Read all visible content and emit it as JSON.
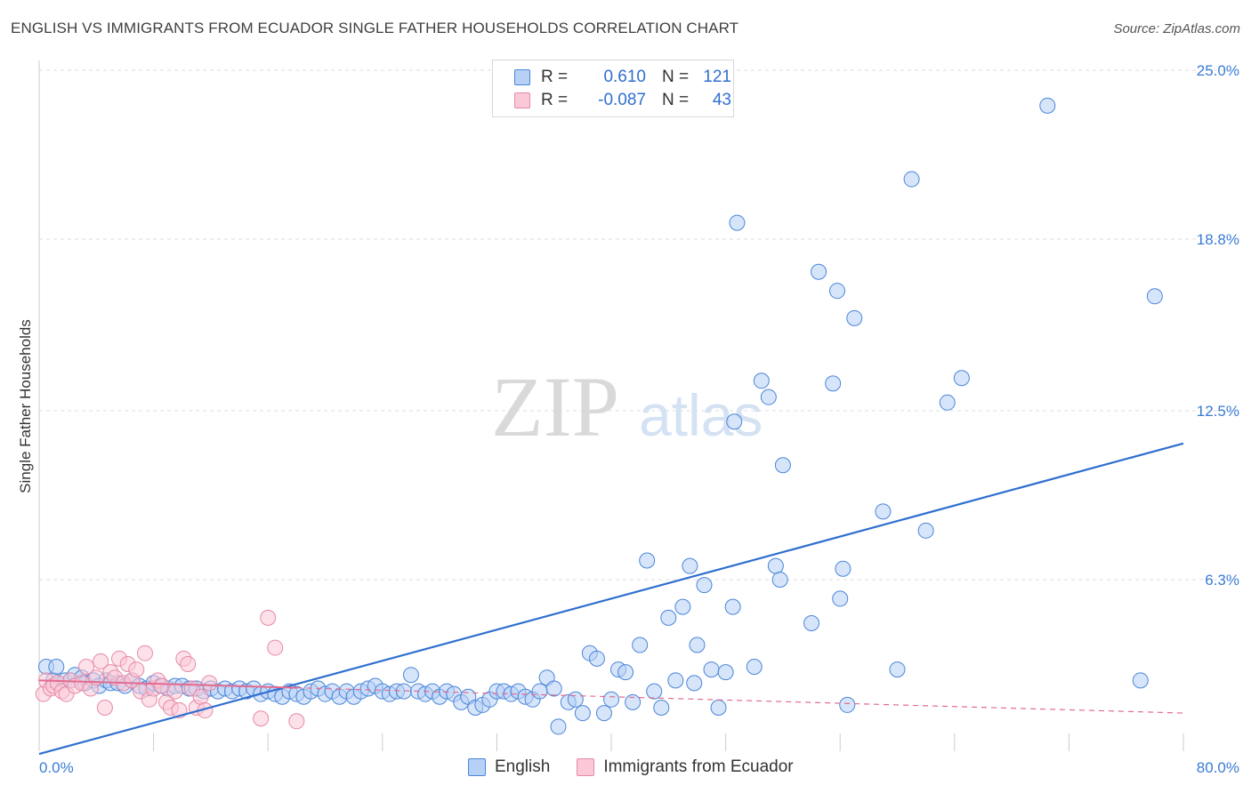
{
  "title": "ENGLISH VS IMMIGRANTS FROM ECUADOR SINGLE FATHER HOUSEHOLDS CORRELATION CHART",
  "source": "Source: ZipAtlas.com",
  "watermark": {
    "zip": "ZIP",
    "atlas": "atlas"
  },
  "legend": {
    "rows": [
      {
        "swatch": "blue",
        "r_label": "R =",
        "r_value": "0.610",
        "n_label": "N =",
        "n_value": "121"
      },
      {
        "swatch": "pink",
        "r_label": "R =",
        "r_value": "-0.087",
        "n_label": "N =",
        "n_value": "43"
      }
    ]
  },
  "bottom_legend": {
    "english": "English",
    "ecuador": "Immigrants from Ecuador"
  },
  "colors": {
    "english_fill": "#b7d0f5",
    "english_stroke": "#4a86d8",
    "english_line": "#2f6fcf",
    "ecuador_fill": "#fbc8d7",
    "ecuador_stroke": "#e58aa7",
    "ecuador_line": "#e36b8f",
    "grid": "#dddddd",
    "axis_label": "#3a7bd5"
  },
  "chart_data": {
    "type": "scatter",
    "title": "ENGLISH VS IMMIGRANTS FROM ECUADOR SINGLE FATHER HOUSEHOLDS CORRELATION CHART",
    "xlabel": "",
    "ylabel": "Single Father Households",
    "xlim": [
      0,
      80
    ],
    "ylim": [
      0,
      25
    ],
    "x_tick_labels": [
      {
        "value": 0,
        "label": "0.0%"
      },
      {
        "value": 80,
        "label": "80.0%"
      }
    ],
    "y_tick_labels": [
      {
        "value": 6.3,
        "label": "6.3%"
      },
      {
        "value": 12.5,
        "label": "12.5%"
      },
      {
        "value": 18.8,
        "label": "18.8%"
      },
      {
        "value": 25.0,
        "label": "25.0%"
      }
    ],
    "series": [
      {
        "name": "English",
        "r": 0.61,
        "n": 121,
        "trend": {
          "x0": 0,
          "y0": -0.1,
          "x1": 80,
          "y1": 11.3,
          "style": "solid"
        },
        "points": [
          [
            0.5,
            3.1
          ],
          [
            1.0,
            2.6
          ],
          [
            1.2,
            3.1
          ],
          [
            1.8,
            2.6
          ],
          [
            2.2,
            2.6
          ],
          [
            2.5,
            2.8
          ],
          [
            3.0,
            2.7
          ],
          [
            3.2,
            2.5
          ],
          [
            3.8,
            2.6
          ],
          [
            4.2,
            2.4
          ],
          [
            4.7,
            2.6
          ],
          [
            5.0,
            2.5
          ],
          [
            5.5,
            2.5
          ],
          [
            6.0,
            2.4
          ],
          [
            6.5,
            2.6
          ],
          [
            7.0,
            2.4
          ],
          [
            7.5,
            2.3
          ],
          [
            8.0,
            2.5
          ],
          [
            8.5,
            2.4
          ],
          [
            9.0,
            2.3
          ],
          [
            9.5,
            2.4
          ],
          [
            10.0,
            2.4
          ],
          [
            10.5,
            2.3
          ],
          [
            11.0,
            2.3
          ],
          [
            11.5,
            2.2
          ],
          [
            12.0,
            2.3
          ],
          [
            12.5,
            2.2
          ],
          [
            13.0,
            2.3
          ],
          [
            13.5,
            2.2
          ],
          [
            14.0,
            2.3
          ],
          [
            14.5,
            2.2
          ],
          [
            15.0,
            2.3
          ],
          [
            15.5,
            2.1
          ],
          [
            16.0,
            2.2
          ],
          [
            16.5,
            2.1
          ],
          [
            17.0,
            2.0
          ],
          [
            17.5,
            2.2
          ],
          [
            18.0,
            2.1
          ],
          [
            18.5,
            2.0
          ],
          [
            19.0,
            2.2
          ],
          [
            19.5,
            2.3
          ],
          [
            20.0,
            2.1
          ],
          [
            20.5,
            2.2
          ],
          [
            21.0,
            2.0
          ],
          [
            21.5,
            2.2
          ],
          [
            22.0,
            2.0
          ],
          [
            22.5,
            2.2
          ],
          [
            23.0,
            2.3
          ],
          [
            23.5,
            2.4
          ],
          [
            24.0,
            2.2
          ],
          [
            24.5,
            2.1
          ],
          [
            25.0,
            2.2
          ],
          [
            25.5,
            2.2
          ],
          [
            26.0,
            2.8
          ],
          [
            26.5,
            2.2
          ],
          [
            27.0,
            2.1
          ],
          [
            27.5,
            2.2
          ],
          [
            28.0,
            2.0
          ],
          [
            28.5,
            2.2
          ],
          [
            29.0,
            2.1
          ],
          [
            29.5,
            1.8
          ],
          [
            30.0,
            2.0
          ],
          [
            30.5,
            1.6
          ],
          [
            31.0,
            1.7
          ],
          [
            31.5,
            1.9
          ],
          [
            32.0,
            2.2
          ],
          [
            32.5,
            2.2
          ],
          [
            33.0,
            2.1
          ],
          [
            33.5,
            2.2
          ],
          [
            34.0,
            2.0
          ],
          [
            34.5,
            1.9
          ],
          [
            35.0,
            2.2
          ],
          [
            35.5,
            2.7
          ],
          [
            36.0,
            2.3
          ],
          [
            36.3,
            0.9
          ],
          [
            37.0,
            1.8
          ],
          [
            37.5,
            1.9
          ],
          [
            38.0,
            1.4
          ],
          [
            38.5,
            3.6
          ],
          [
            39.0,
            3.4
          ],
          [
            39.5,
            1.4
          ],
          [
            40.0,
            1.9
          ],
          [
            40.5,
            3.0
          ],
          [
            41.0,
            2.9
          ],
          [
            41.5,
            1.8
          ],
          [
            42.0,
            3.9
          ],
          [
            42.5,
            7.0
          ],
          [
            43.0,
            2.2
          ],
          [
            43.5,
            1.6
          ],
          [
            44.0,
            4.9
          ],
          [
            44.5,
            2.6
          ],
          [
            45.0,
            5.3
          ],
          [
            45.5,
            6.8
          ],
          [
            45.8,
            2.5
          ],
          [
            46.0,
            3.9
          ],
          [
            46.5,
            6.1
          ],
          [
            47.0,
            3.0
          ],
          [
            47.5,
            1.6
          ],
          [
            48.0,
            2.9
          ],
          [
            48.5,
            5.3
          ],
          [
            48.8,
            19.4
          ],
          [
            48.6,
            12.1
          ],
          [
            50.0,
            3.1
          ],
          [
            50.5,
            13.6
          ],
          [
            51.0,
            13.0
          ],
          [
            51.5,
            6.8
          ],
          [
            51.8,
            6.3
          ],
          [
            52.0,
            10.5
          ],
          [
            54.0,
            4.7
          ],
          [
            54.5,
            17.6
          ],
          [
            55.5,
            13.5
          ],
          [
            55.8,
            16.9
          ],
          [
            56.0,
            5.6
          ],
          [
            56.2,
            6.7
          ],
          [
            56.5,
            1.7
          ],
          [
            57.0,
            15.9
          ],
          [
            59.0,
            8.8
          ],
          [
            60.0,
            3.0
          ],
          [
            61.0,
            21.0
          ],
          [
            62.0,
            8.1
          ],
          [
            63.5,
            12.8
          ],
          [
            64.5,
            13.7
          ],
          [
            70.5,
            23.7
          ],
          [
            77.0,
            2.6
          ],
          [
            78.0,
            16.7
          ]
        ]
      },
      {
        "name": "Immigrants from Ecuador",
        "r": -0.087,
        "n": 43,
        "trend": {
          "x0": 0,
          "y0": 2.6,
          "x1": 80,
          "y1": 1.4,
          "style": "dashed"
        },
        "points": [
          [
            0.3,
            2.1
          ],
          [
            0.5,
            2.6
          ],
          [
            0.8,
            2.3
          ],
          [
            1.0,
            2.4
          ],
          [
            1.3,
            2.5
          ],
          [
            1.6,
            2.2
          ],
          [
            1.9,
            2.1
          ],
          [
            2.2,
            2.6
          ],
          [
            2.5,
            2.4
          ],
          [
            3.0,
            2.5
          ],
          [
            3.3,
            3.1
          ],
          [
            3.6,
            2.3
          ],
          [
            4.0,
            2.7
          ],
          [
            4.3,
            3.3
          ],
          [
            4.6,
            1.6
          ],
          [
            5.0,
            2.9
          ],
          [
            5.3,
            2.7
          ],
          [
            5.6,
            3.4
          ],
          [
            5.9,
            2.5
          ],
          [
            6.2,
            3.2
          ],
          [
            6.5,
            2.6
          ],
          [
            6.8,
            3.0
          ],
          [
            7.1,
            2.2
          ],
          [
            7.4,
            3.6
          ],
          [
            7.7,
            1.9
          ],
          [
            8.0,
            2.3
          ],
          [
            8.3,
            2.6
          ],
          [
            8.6,
            2.4
          ],
          [
            8.9,
            1.8
          ],
          [
            9.2,
            1.6
          ],
          [
            9.5,
            2.2
          ],
          [
            9.8,
            1.5
          ],
          [
            10.1,
            3.4
          ],
          [
            10.4,
            3.2
          ],
          [
            10.7,
            2.3
          ],
          [
            11.0,
            1.6
          ],
          [
            11.3,
            2.0
          ],
          [
            11.6,
            1.5
          ],
          [
            11.9,
            2.5
          ],
          [
            15.5,
            1.2
          ],
          [
            16.0,
            4.9
          ],
          [
            16.5,
            3.8
          ],
          [
            18.0,
            1.1
          ]
        ]
      }
    ]
  }
}
